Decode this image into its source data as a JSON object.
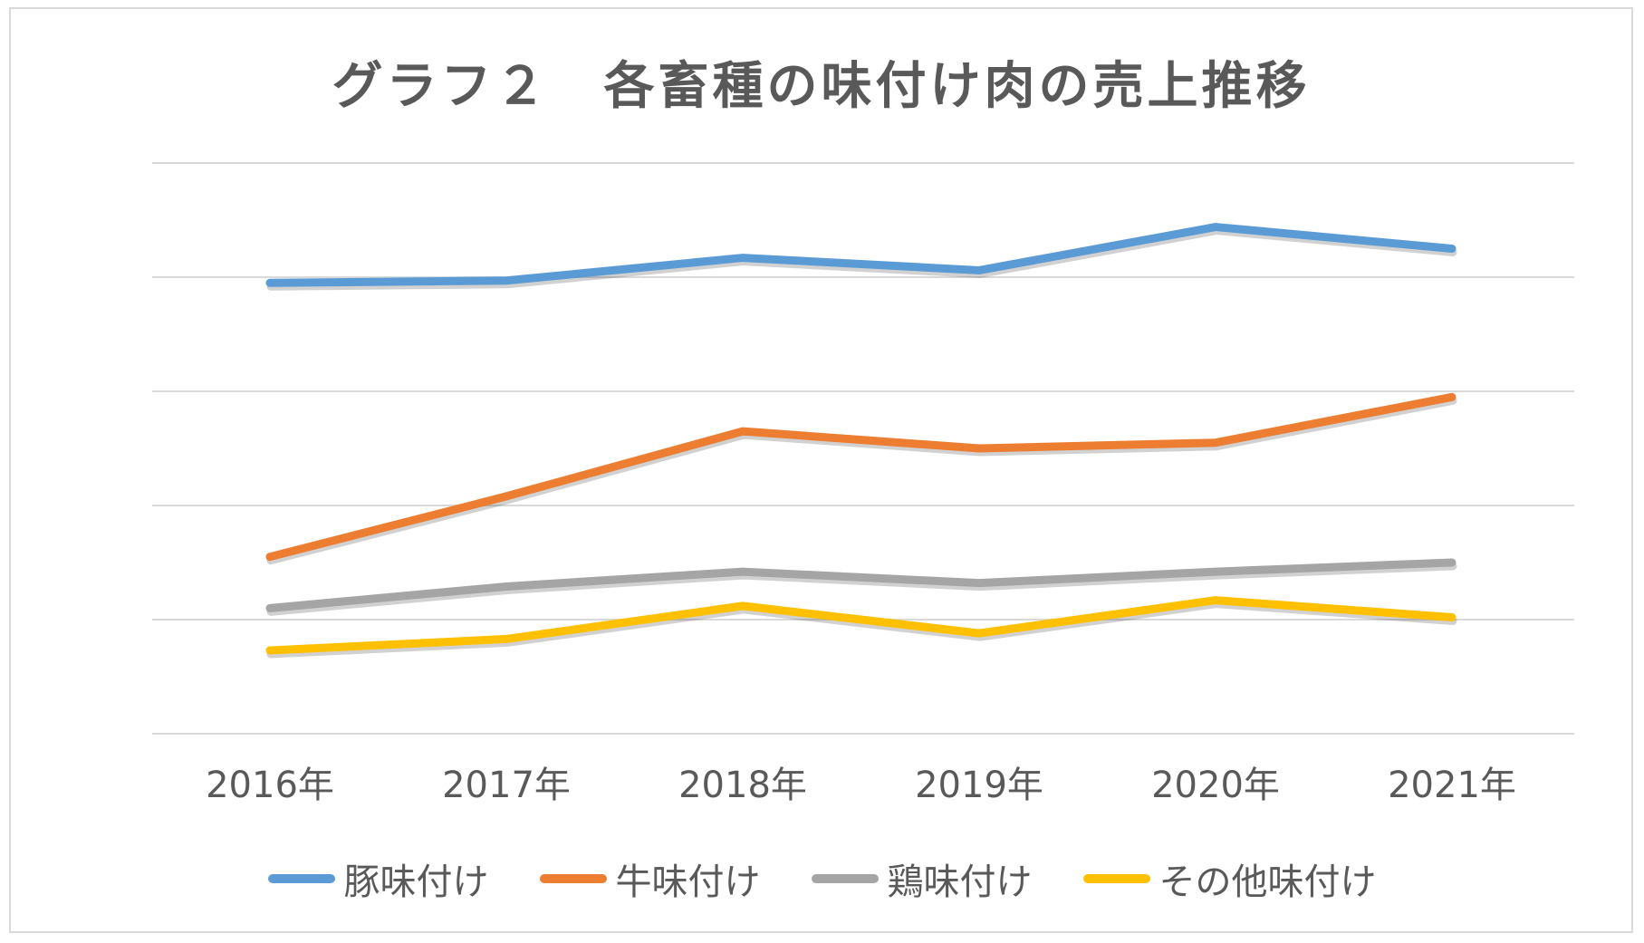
{
  "chart_data": {
    "type": "line",
    "title": "グラフ２　各畜種の味付け肉の売上推移",
    "xlabel": "",
    "ylabel": "",
    "categories": [
      "2016年",
      "2017年",
      "2018年",
      "2019年",
      "2020年",
      "2021年"
    ],
    "ylim": [
      0,
      5
    ],
    "y_gridlines": [
      0,
      1,
      2,
      3,
      4,
      5
    ],
    "y_tick_labels_shown": false,
    "grid": true,
    "legend_position": "bottom",
    "series": [
      {
        "name": "豚味付け",
        "color": "#5b9bd5",
        "values": [
          3.95,
          3.97,
          4.17,
          4.06,
          4.44,
          4.25
        ]
      },
      {
        "name": "牛味付け",
        "color": "#ed7d31",
        "values": [
          1.55,
          2.08,
          2.65,
          2.5,
          2.55,
          2.95
        ]
      },
      {
        "name": "鶏味付け",
        "color": "#a5a5a5",
        "values": [
          1.1,
          1.29,
          1.42,
          1.32,
          1.42,
          1.5
        ]
      },
      {
        "name": "その他味付け",
        "color": "#ffc000",
        "values": [
          0.73,
          0.83,
          1.12,
          0.88,
          1.17,
          1.02
        ]
      }
    ]
  }
}
